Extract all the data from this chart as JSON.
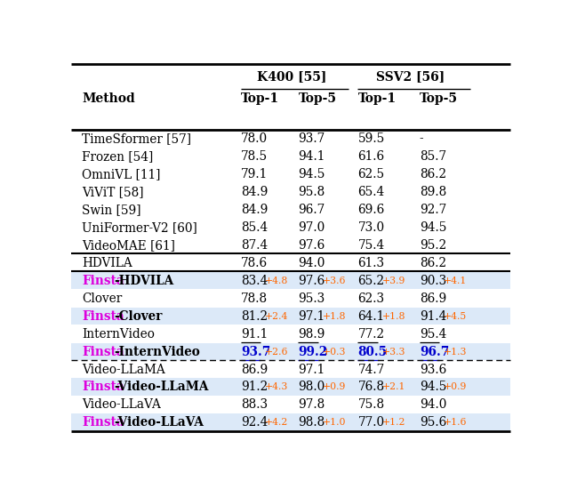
{
  "rows": [
    {
      "method": "TimeSformer [57]",
      "vals": [
        "78.0",
        "93.7",
        "59.5",
        "-"
      ],
      "highlight": false,
      "finsta": false,
      "underline_vals": false,
      "bold_vals": false,
      "deltas": [
        "",
        "",
        "",
        ""
      ]
    },
    {
      "method": "Frozen [54]",
      "vals": [
        "78.5",
        "94.1",
        "61.6",
        "85.7"
      ],
      "highlight": false,
      "finsta": false,
      "underline_vals": false,
      "bold_vals": false,
      "deltas": [
        "",
        "",
        "",
        ""
      ]
    },
    {
      "method": "OmniVL [11]",
      "vals": [
        "79.1",
        "94.5",
        "62.5",
        "86.2"
      ],
      "highlight": false,
      "finsta": false,
      "underline_vals": false,
      "bold_vals": false,
      "deltas": [
        "",
        "",
        "",
        ""
      ]
    },
    {
      "method": "ViViT [58]",
      "vals": [
        "84.9",
        "95.8",
        "65.4",
        "89.8"
      ],
      "highlight": false,
      "finsta": false,
      "underline_vals": false,
      "bold_vals": false,
      "deltas": [
        "",
        "",
        "",
        ""
      ]
    },
    {
      "method": "Swin [59]",
      "vals": [
        "84.9",
        "96.7",
        "69.6",
        "92.7"
      ],
      "highlight": false,
      "finsta": false,
      "underline_vals": false,
      "bold_vals": false,
      "deltas": [
        "",
        "",
        "",
        ""
      ]
    },
    {
      "method": "UniFormer-V2 [60]",
      "vals": [
        "85.4",
        "97.0",
        "73.0",
        "94.5"
      ],
      "highlight": false,
      "finsta": false,
      "underline_vals": false,
      "bold_vals": false,
      "deltas": [
        "",
        "",
        "",
        ""
      ]
    },
    {
      "method": "VideoMAE [61]",
      "vals": [
        "87.4",
        "97.6",
        "75.4",
        "95.2"
      ],
      "highlight": false,
      "finsta": false,
      "underline_vals": false,
      "bold_vals": false,
      "deltas": [
        "",
        "",
        "",
        ""
      ]
    },
    {
      "method": "HDVILA",
      "vals": [
        "78.6",
        "94.0",
        "61.3",
        "86.2"
      ],
      "highlight": false,
      "finsta": false,
      "underline_vals": false,
      "bold_vals": false,
      "deltas": [
        "",
        "",
        "",
        ""
      ]
    },
    {
      "method": "Finsta-HDVILA",
      "vals": [
        "83.4",
        "97.6",
        "65.2",
        "90.3"
      ],
      "highlight": true,
      "finsta": true,
      "underline_vals": false,
      "bold_vals": false,
      "deltas": [
        "+4.8",
        "+3.6",
        "+3.9",
        "+4.1"
      ]
    },
    {
      "method": "Clover",
      "vals": [
        "78.8",
        "95.3",
        "62.3",
        "86.9"
      ],
      "highlight": false,
      "finsta": false,
      "underline_vals": false,
      "bold_vals": false,
      "deltas": [
        "",
        "",
        "",
        ""
      ]
    },
    {
      "method": "Finsta-Clover",
      "vals": [
        "81.2",
        "97.1",
        "64.1",
        "91.4"
      ],
      "highlight": true,
      "finsta": true,
      "underline_vals": false,
      "bold_vals": false,
      "deltas": [
        "+2.4",
        "+1.8",
        "+1.8",
        "+4.5"
      ]
    },
    {
      "method": "InternVideo",
      "vals": [
        "91.1",
        "98.9",
        "77.2",
        "95.4"
      ],
      "highlight": false,
      "finsta": false,
      "underline_vals": true,
      "bold_vals": false,
      "deltas": [
        "",
        "",
        "",
        ""
      ]
    },
    {
      "method": "Finsta-InternVideo",
      "vals": [
        "93.7",
        "99.2",
        "80.5",
        "96.7"
      ],
      "highlight": true,
      "finsta": true,
      "underline_vals": true,
      "bold_vals": true,
      "deltas": [
        "+2.6",
        "+0.3",
        "+3.3",
        "+1.3"
      ]
    },
    {
      "method": "Video-LLaMA",
      "vals": [
        "86.9",
        "97.1",
        "74.7",
        "93.6"
      ],
      "highlight": false,
      "finsta": false,
      "underline_vals": false,
      "bold_vals": false,
      "deltas": [
        "",
        "",
        "",
        ""
      ]
    },
    {
      "method": "Finsta-Video-LLaMA",
      "vals": [
        "91.2",
        "98.0",
        "76.8",
        "94.5"
      ],
      "highlight": true,
      "finsta": true,
      "underline_vals": false,
      "bold_vals": false,
      "deltas": [
        "+4.3",
        "+0.9",
        "+2.1",
        "+0.9"
      ]
    },
    {
      "method": "Video-LLaVA",
      "vals": [
        "88.3",
        "97.8",
        "75.8",
        "94.0"
      ],
      "highlight": false,
      "finsta": false,
      "underline_vals": false,
      "bold_vals": false,
      "deltas": [
        "",
        "",
        "",
        ""
      ]
    },
    {
      "method": "Finsta-Video-LLaVA",
      "vals": [
        "92.4",
        "98.8",
        "77.0",
        "95.6"
      ],
      "highlight": true,
      "finsta": true,
      "underline_vals": false,
      "bold_vals": false,
      "deltas": [
        "+4.2",
        "+1.0",
        "+1.2",
        "+1.6"
      ]
    }
  ],
  "highlight_color": "#dce9f8",
  "finsta_color": "#dd00dd",
  "delta_color": "#ff6600",
  "bold_color": "#0000cc",
  "thick_sep_after_rows": [
    6,
    7
  ],
  "dashed_sep_before_row": 13
}
